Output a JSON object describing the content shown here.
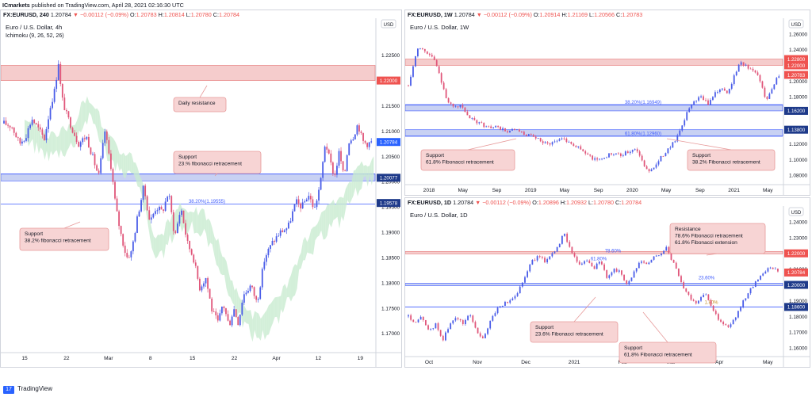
{
  "header": {
    "publisher": "ICmarkets",
    "published_text": "published on TradingView.com, April 28, 2021 02:16:30 UTC"
  },
  "footer": {
    "logo_text": "TradingView"
  },
  "colors": {
    "bull": "#4a5de8",
    "bear": "#e0567a",
    "resistance_zone": "#f4c7c7",
    "support_zone": "#c3cdf2",
    "cloud_bull": "#c8ebd0",
    "cloud_bear": "#f8d6d8",
    "callout_fill": "#f7d4d4",
    "callout_border": "#e79a9a",
    "price_tag_red": "#ef5350",
    "price_tag_blue": "#2962ff",
    "price_tag_dark": "#1e3a8a"
  },
  "chart_data": [
    {
      "id": "h4",
      "type": "candlestick",
      "header": {
        "symbol": "FX:EURUSD, 240",
        "last": "1.20784",
        "change": "−0.00112 (−0.09%)",
        "O": "1.20783",
        "H": "1.20814",
        "L": "1.20780",
        "C": "1.20784"
      },
      "title": "Euro / U.S. Dollar, 4h",
      "indicator": "Ichimoku (9, 26, 52, 26)",
      "currency": "USD",
      "ylim": [
        1.1665,
        1.2295
      ],
      "y_ticks": [
        "1.22500",
        "1.22000",
        "1.21500",
        "1.21000",
        "1.20500",
        "1.20000",
        "1.19500",
        "1.19000",
        "1.18500",
        "1.18000",
        "1.17500",
        "1.17000"
      ],
      "x_labels": [
        "15",
        "22",
        "Mar",
        "8",
        "15",
        "22",
        "Apr",
        "12",
        "19"
      ],
      "price_tags": [
        {
          "text": "1.22000",
          "value": 1.22,
          "style": "red"
        },
        {
          "text": "1.20784",
          "value": 1.20784,
          "style": "blue"
        },
        {
          "text": "1.20077",
          "value": 1.20077,
          "style": "dark"
        },
        {
          "text": "1.19578",
          "value": 1.19578,
          "style": "dark"
        }
      ],
      "zones": [
        {
          "kind": "resistance",
          "from": 1.22,
          "to": 1.223
        },
        {
          "kind": "support",
          "from": 1.20015,
          "to": 1.20153
        }
      ],
      "lines": [
        {
          "value": 1.20153,
          "label": "23.60%(1.20153)"
        },
        {
          "value": 1.19555,
          "label": "38.20%(1.19555)"
        }
      ],
      "callouts": [
        {
          "lines": [
            "Daily resistance"
          ]
        },
        {
          "lines": [
            "Support",
            "23.% fibonacci retracement"
          ]
        },
        {
          "lines": [
            "Support",
            "38.2% fibonacci retracement"
          ]
        }
      ],
      "series_anchors": [
        [
          0,
          1.2115
        ],
        [
          10,
          1.211
        ],
        [
          20,
          1.2075
        ],
        [
          28,
          1.209
        ],
        [
          36,
          1.2125
        ],
        [
          44,
          1.2105
        ],
        [
          52,
          1.2085
        ],
        [
          60,
          1.215
        ],
        [
          66,
          1.2185
        ],
        [
          70,
          1.224
        ],
        [
          74,
          1.217
        ],
        [
          80,
          1.2135
        ],
        [
          88,
          1.2105
        ],
        [
          96,
          1.2075
        ],
        [
          106,
          1.209
        ],
        [
          114,
          1.205
        ],
        [
          122,
          1.201
        ],
        [
          130,
          1.21
        ],
        [
          138,
          1.203
        ],
        [
          144,
          1.195
        ],
        [
          150,
          1.19
        ],
        [
          158,
          1.185
        ],
        [
          164,
          1.186
        ],
        [
          172,
          1.193
        ],
        [
          180,
          1.199
        ],
        [
          188,
          1.192
        ],
        [
          196,
          1.195
        ],
        [
          204,
          1.194
        ],
        [
          212,
          1.198
        ],
        [
          220,
          1.189
        ],
        [
          228,
          1.195
        ],
        [
          236,
          1.188
        ],
        [
          244,
          1.185
        ],
        [
          252,
          1.179
        ],
        [
          260,
          1.181
        ],
        [
          268,
          1.1745
        ],
        [
          276,
          1.172
        ],
        [
          282,
          1.176
        ],
        [
          290,
          1.1715
        ],
        [
          296,
          1.175
        ],
        [
          302,
          1.172
        ],
        [
          308,
          1.1775
        ],
        [
          318,
          1.1795
        ],
        [
          326,
          1.176
        ],
        [
          336,
          1.185
        ],
        [
          346,
          1.188
        ],
        [
          356,
          1.19
        ],
        [
          366,
          1.191
        ],
        [
          376,
          1.196
        ],
        [
          384,
          1.195
        ],
        [
          392,
          1.1975
        ],
        [
          400,
          1.1945
        ],
        [
          408,
          1.2
        ],
        [
          414,
          1.208
        ],
        [
          420,
          1.204
        ],
        [
          426,
          1.201
        ],
        [
          432,
          1.206
        ],
        [
          438,
          1.2005
        ],
        [
          444,
          1.208
        ],
        [
          450,
          1.209
        ],
        [
          456,
          1.2115
        ],
        [
          462,
          1.208
        ],
        [
          468,
          1.2075
        ],
        [
          474,
          1.2078
        ]
      ]
    },
    {
      "id": "w1",
      "type": "candlestick",
      "header": {
        "symbol": "FX:EURUSD, 1W",
        "last": "1.20784",
        "change": "−0.00112 (−0.09%)",
        "O": "1.20914",
        "H": "1.21169",
        "L": "1.20566",
        "C": "1.20783"
      },
      "title": "Euro / U.S. Dollar, 1W",
      "currency": "USD",
      "ylim": [
        1.07,
        1.272
      ],
      "y_ticks": [
        "1.26000",
        "1.24000",
        "1.22000",
        "1.20000",
        "1.18000",
        "1.16000",
        "1.14000",
        "1.12000",
        "1.10000",
        "1.08000"
      ],
      "x_labels": [
        "2018",
        "May",
        "Sep",
        "2019",
        "May",
        "Sep",
        "2020",
        "May",
        "Sep",
        "2021",
        "May"
      ],
      "price_tags": [
        {
          "text": "1.22800",
          "value": 1.228,
          "style": "red"
        },
        {
          "text": "1.22000",
          "value": 1.22,
          "style": "red"
        },
        {
          "text": "1.20783",
          "value": 1.20783,
          "style": "red"
        },
        {
          "text": "1.16200",
          "value": 1.162,
          "style": "dark"
        },
        {
          "text": "1.13800",
          "value": 1.138,
          "style": "dark"
        }
      ],
      "zones": [
        {
          "kind": "resistance",
          "from": 1.22,
          "to": 1.228
        },
        {
          "kind": "support",
          "from": 1.162,
          "to": 1.17
        },
        {
          "kind": "support",
          "from": 1.13,
          "to": 1.138
        }
      ],
      "lines": [
        {
          "value": 1.16949,
          "label": "38.20%(1.16949)"
        },
        {
          "value": 1.1296,
          "label": "61.80%(1.12960)"
        }
      ],
      "callouts": [
        {
          "lines": [
            "Support",
            "61.8% Fibonacci retracement"
          ]
        },
        {
          "lines": [
            "Support",
            "38.2% Fibonacci retracement"
          ]
        }
      ],
      "series_anchors": [
        [
          0,
          1.195
        ],
        [
          6,
          1.22
        ],
        [
          12,
          1.245
        ],
        [
          18,
          1.24
        ],
        [
          24,
          1.235
        ],
        [
          30,
          1.23
        ],
        [
          36,
          1.215
        ],
        [
          42,
          1.195
        ],
        [
          48,
          1.175
        ],
        [
          56,
          1.165
        ],
        [
          64,
          1.17
        ],
        [
          72,
          1.155
        ],
        [
          80,
          1.15
        ],
        [
          90,
          1.145
        ],
        [
          100,
          1.14
        ],
        [
          110,
          1.142
        ],
        [
          120,
          1.135
        ],
        [
          130,
          1.138
        ],
        [
          140,
          1.133
        ],
        [
          150,
          1.13
        ],
        [
          160,
          1.125
        ],
        [
          170,
          1.12
        ],
        [
          180,
          1.123
        ],
        [
          190,
          1.128
        ],
        [
          200,
          1.12
        ],
        [
          210,
          1.115
        ],
        [
          220,
          1.105
        ],
        [
          230,
          1.1
        ],
        [
          240,
          1.102
        ],
        [
          250,
          1.108
        ],
        [
          260,
          1.105
        ],
        [
          270,
          1.11
        ],
        [
          280,
          1.115
        ],
        [
          288,
          1.095
        ],
        [
          294,
          1.085
        ],
        [
          300,
          1.09
        ],
        [
          306,
          1.095
        ],
        [
          312,
          1.105
        ],
        [
          320,
          1.115
        ],
        [
          328,
          1.125
        ],
        [
          336,
          1.14
        ],
        [
          344,
          1.165
        ],
        [
          352,
          1.175
        ],
        [
          360,
          1.18
        ],
        [
          368,
          1.17
        ],
        [
          376,
          1.185
        ],
        [
          384,
          1.19
        ],
        [
          392,
          1.185
        ],
        [
          400,
          1.205
        ],
        [
          408,
          1.225
        ],
        [
          414,
          1.22
        ],
        [
          420,
          1.215
        ],
        [
          428,
          1.21
        ],
        [
          434,
          1.195
        ],
        [
          440,
          1.175
        ],
        [
          446,
          1.19
        ],
        [
          452,
          1.203
        ],
        [
          456,
          1.208
        ]
      ]
    },
    {
      "id": "d1",
      "type": "candlestick",
      "header": {
        "symbol": "FX:EURUSD, 1D",
        "last": "1.20784",
        "change": "−0.00112 (−0.09%)",
        "O": "1.20896",
        "H": "1.20932",
        "L": "1.20780",
        "C": "1.20784"
      },
      "title": "Euro / U.S. Dollar, 1D",
      "currency": "USD",
      "ylim": [
        1.1555,
        1.246
      ],
      "y_ticks": [
        "1.24000",
        "1.23000",
        "1.22000",
        "1.21000",
        "1.20000",
        "1.19000",
        "1.18000",
        "1.17000",
        "1.16000"
      ],
      "x_labels": [
        "Oct",
        "Nov",
        "Dec",
        "2021",
        "Feb",
        "Mar",
        "Apr",
        "May"
      ],
      "price_tags": [
        {
          "text": "1.22000",
          "value": 1.22,
          "style": "red"
        },
        {
          "text": "1.20784",
          "value": 1.20784,
          "style": "red"
        },
        {
          "text": "1.20000",
          "value": 1.2,
          "style": "dark"
        },
        {
          "text": "1.18600",
          "value": 1.186,
          "style": "dark"
        }
      ],
      "zones": [
        {
          "kind": "resistance",
          "from": 1.22,
          "to": 1.2212
        },
        {
          "kind": "support",
          "from": 1.1995,
          "to": 1.201
        }
      ],
      "lines": [
        {
          "value": 1.186,
          "label": ""
        }
      ],
      "fib_labels": [
        "78.60%",
        "61.80%",
        "23.60%",
        "1.80%"
      ],
      "callouts": [
        {
          "lines": [
            "Resistance",
            "78.6% Fibonacci retracement",
            "61.8% Fibonacci extension"
          ]
        },
        {
          "lines": [
            "Support",
            "23.6% Fibonacci retracement"
          ]
        },
        {
          "lines": [
            "Support",
            "61.8% Fibonacci retracement"
          ]
        }
      ],
      "series_anchors": [
        [
          0,
          1.18
        ],
        [
          8,
          1.175
        ],
        [
          16,
          1.18
        ],
        [
          24,
          1.17
        ],
        [
          32,
          1.175
        ],
        [
          40,
          1.165
        ],
        [
          48,
          1.174
        ],
        [
          56,
          1.18
        ],
        [
          64,
          1.175
        ],
        [
          72,
          1.182
        ],
        [
          80,
          1.17
        ],
        [
          88,
          1.165
        ],
        [
          96,
          1.178
        ],
        [
          104,
          1.185
        ],
        [
          112,
          1.188
        ],
        [
          120,
          1.19
        ],
        [
          128,
          1.196
        ],
        [
          136,
          1.205
        ],
        [
          144,
          1.215
        ],
        [
          152,
          1.218
        ],
        [
          160,
          1.215
        ],
        [
          168,
          1.22
        ],
        [
          176,
          1.225
        ],
        [
          182,
          1.233
        ],
        [
          188,
          1.225
        ],
        [
          194,
          1.218
        ],
        [
          200,
          1.212
        ],
        [
          208,
          1.216
        ],
        [
          216,
          1.21
        ],
        [
          224,
          1.215
        ],
        [
          232,
          1.205
        ],
        [
          240,
          1.21
        ],
        [
          248,
          1.208
        ],
        [
          256,
          1.2
        ],
        [
          264,
          1.208
        ],
        [
          272,
          1.215
        ],
        [
          280,
          1.213
        ],
        [
          288,
          1.218
        ],
        [
          296,
          1.22
        ],
        [
          302,
          1.224
        ],
        [
          308,
          1.215
        ],
        [
          314,
          1.21
        ],
        [
          320,
          1.2
        ],
        [
          326,
          1.195
        ],
        [
          332,
          1.19
        ],
        [
          338,
          1.188
        ],
        [
          344,
          1.195
        ],
        [
          350,
          1.192
        ],
        [
          356,
          1.185
        ],
        [
          362,
          1.178
        ],
        [
          368,
          1.175
        ],
        [
          374,
          1.173
        ],
        [
          380,
          1.177
        ],
        [
          386,
          1.183
        ],
        [
          392,
          1.19
        ],
        [
          398,
          1.196
        ],
        [
          404,
          1.2
        ],
        [
          410,
          1.205
        ],
        [
          416,
          1.208
        ],
        [
          422,
          1.212
        ],
        [
          428,
          1.21
        ],
        [
          434,
          1.2078
        ]
      ]
    }
  ]
}
